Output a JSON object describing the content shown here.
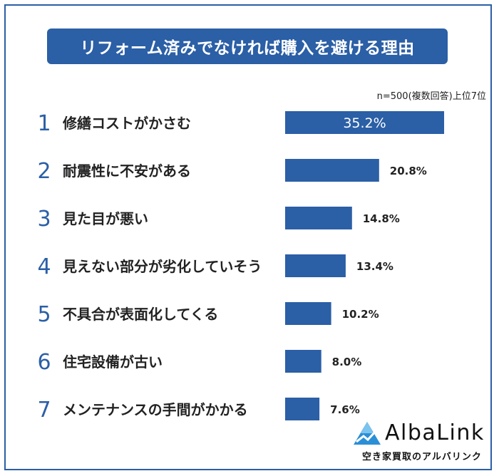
{
  "title": "リフォーム済みでなければ購入を避ける理由",
  "note": "n=500(複数回答)上位7位",
  "brand": {
    "name": "AlbaLink",
    "tagline": "空き家買取のアルバリンク"
  },
  "colors": {
    "bar": "#2b5fa6",
    "title_bg": "#2b5fa6",
    "rank": "#2b5fa6"
  },
  "chart_data": {
    "type": "bar",
    "orientation": "horizontal",
    "ranks": [
      "1",
      "2",
      "3",
      "4",
      "5",
      "6",
      "7"
    ],
    "categories": [
      "修繕コストがかさむ",
      "耐震性に不安がある",
      "見た目が悪い",
      "見えない部分が劣化していそう",
      "不具合が表面化してくる",
      "住宅設備が古い",
      "メンテナンスの手間がかかる"
    ],
    "values": [
      35.2,
      20.8,
      14.8,
      13.4,
      10.2,
      8.0,
      7.6
    ],
    "value_labels": [
      "35.2%",
      "20.8%",
      "14.8%",
      "13.4%",
      "10.2%",
      "8.0%",
      "7.6%"
    ],
    "unit": "%"
  }
}
